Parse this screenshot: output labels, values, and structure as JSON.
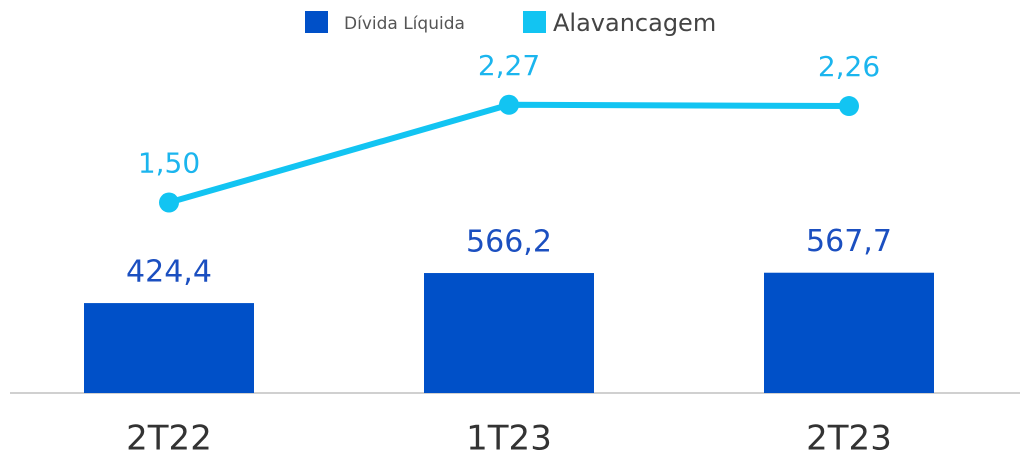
{
  "chart_data": {
    "type": "bar",
    "categories": [
      "2T22",
      "1T23",
      "2T23"
    ],
    "series": [
      {
        "name": "Dívida Líquida",
        "type": "bar",
        "color": "#0050c8",
        "values": [
          424.4,
          566.2,
          567.7
        ],
        "value_labels": [
          "424,4",
          "566,2",
          "567,7"
        ]
      },
      {
        "name": "Alavancagem",
        "type": "line",
        "axis": "y2",
        "color": "#12c4f2",
        "values": [
          1.5,
          2.27,
          2.26
        ],
        "value_labels": [
          "1,50",
          "2,27",
          "2,26"
        ]
      }
    ],
    "ylim": [
      0,
      1600
    ],
    "y2lim": [
      0,
      2.67
    ],
    "legend": "top"
  }
}
